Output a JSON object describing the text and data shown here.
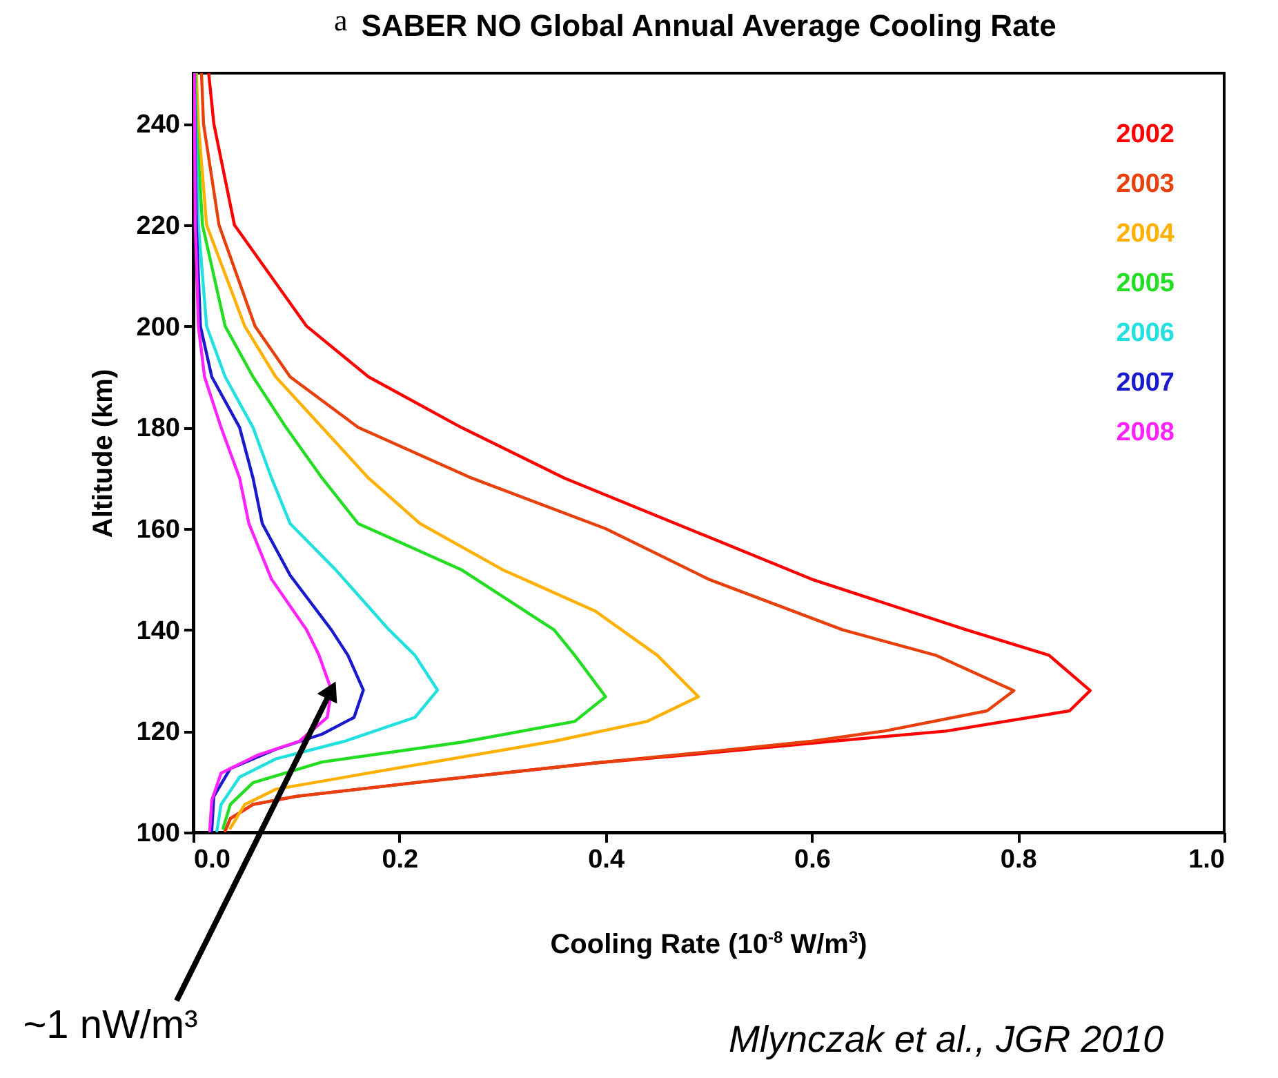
{
  "chart_data": {
    "type": "line",
    "title": "SABER NO Global Annual Average Cooling Rate",
    "xlabel": "Cooling Rate (10$^{-8}$ W/m$^{3}$)",
    "ylabel": "Altitude (km)",
    "xlim": [
      0,
      1
    ],
    "ylim": [
      100,
      250
    ],
    "xticks": [
      {
        "value": 0,
        "label": "0.0"
      },
      {
        "value": 0.2,
        "label": "0.2"
      },
      {
        "value": 0.4,
        "label": "0.4"
      },
      {
        "value": 0.6,
        "label": "0.6"
      },
      {
        "value": 0.8,
        "label": "0.8"
      },
      {
        "value": 1,
        "label": "1.0"
      }
    ],
    "yticks": [
      100,
      120,
      140,
      160,
      180,
      200,
      220,
      240
    ],
    "legend": "top right",
    "series": [
      {
        "name": "2002",
        "color": "#ff0000",
        "x": [
          0.031,
          0.036,
          0.058,
          0.1,
          0.215,
          0.39,
          0.48,
          0.62,
          0.73,
          0.85,
          0.87,
          0.83,
          0.75,
          0.6,
          0.48,
          0.36,
          0.26,
          0.17,
          0.11,
          0.04,
          0.02,
          0.015
        ],
        "values": [
          100.3,
          102.7,
          105.5,
          107.1,
          109.8,
          113.7,
          115.3,
          118,
          120,
          124,
          128,
          135,
          140,
          150,
          160,
          170,
          180,
          190,
          200,
          220,
          240,
          250
        ]
      },
      {
        "name": "2003",
        "color": "#e8400c",
        "x": [
          0.031,
          0.036,
          0.058,
          0.1,
          0.215,
          0.39,
          0.47,
          0.6,
          0.67,
          0.77,
          0.796,
          0.72,
          0.63,
          0.5,
          0.4,
          0.27,
          0.16,
          0.094,
          0.06,
          0.025,
          0.01,
          0.008
        ],
        "values": [
          100.3,
          102.7,
          105.5,
          107.1,
          109.8,
          113.7,
          115.3,
          118,
          120,
          124,
          128,
          135,
          140,
          150,
          160,
          170,
          180,
          190,
          200,
          220,
          240,
          250
        ]
      },
      {
        "name": "2004",
        "color": "#ffb000",
        "x": [
          0.036,
          0.05,
          0.08,
          0.17,
          0.35,
          0.44,
          0.49,
          0.45,
          0.39,
          0.3,
          0.22,
          0.17,
          0.125,
          0.08,
          0.05,
          0.013,
          0.005,
          0.003
        ],
        "values": [
          100.8,
          105.5,
          108.5,
          111.7,
          118,
          121.9,
          126.8,
          135,
          143.7,
          151.9,
          161,
          170,
          180,
          190,
          200,
          220,
          240,
          250
        ]
      },
      {
        "name": "2005",
        "color": "#22dd22",
        "x": [
          0.029,
          0.036,
          0.058,
          0.125,
          0.26,
          0.37,
          0.4,
          0.37,
          0.35,
          0.26,
          0.16,
          0.125,
          0.09,
          0.058,
          0.031,
          0.009,
          0.003,
          0.002
        ],
        "values": [
          100.8,
          105.5,
          109.8,
          113.9,
          117.8,
          121.9,
          126.8,
          135,
          140,
          151.9,
          161,
          170,
          180,
          190,
          200,
          220,
          240,
          250
        ]
      },
      {
        "name": "2006",
        "color": "#22e0e0",
        "x": [
          0.023,
          0.027,
          0.045,
          0.08,
          0.147,
          0.215,
          0.237,
          0.215,
          0.19,
          0.138,
          0.094,
          0.076,
          0.058,
          0.031,
          0.013,
          0.005,
          0.001
        ],
        "values": [
          100.3,
          105.5,
          110.9,
          114.5,
          118,
          122.7,
          128.1,
          135,
          140,
          151.9,
          161,
          170,
          180,
          190,
          200,
          220,
          250
        ]
      },
      {
        "name": "2007",
        "color": "#1a1acc",
        "x": [
          0.018,
          0.02,
          0.036,
          0.08,
          0.125,
          0.156,
          0.165,
          0.15,
          0.134,
          0.094,
          0.067,
          0.058,
          0.045,
          0.018,
          0.007,
          0.003,
          0.001
        ],
        "values": [
          100.3,
          107.1,
          112.6,
          116.4,
          119.4,
          122.7,
          128.1,
          135,
          140,
          150.8,
          161,
          170,
          180,
          190,
          200,
          220,
          250
        ]
      },
      {
        "name": "2008",
        "color": "#ff22ff",
        "x": [
          0.016,
          0.018,
          0.027,
          0.063,
          0.103,
          0.13,
          0.134,
          0.122,
          0.11,
          0.076,
          0.054,
          0.045,
          0.027,
          0.011,
          0.005,
          0.002,
          0.001
        ],
        "values": [
          100.3,
          106.3,
          111.7,
          115.3,
          118,
          122.7,
          128.1,
          135,
          140,
          150,
          161,
          170,
          180,
          190,
          200,
          220,
          250
        ]
      }
    ],
    "annotations": [
      "a",
      {
        "text": "~1 nW/m³",
        "x": 0.134,
        "y": 128.1
      },
      "Mlynczak et al., JGR 2010"
    ]
  }
}
